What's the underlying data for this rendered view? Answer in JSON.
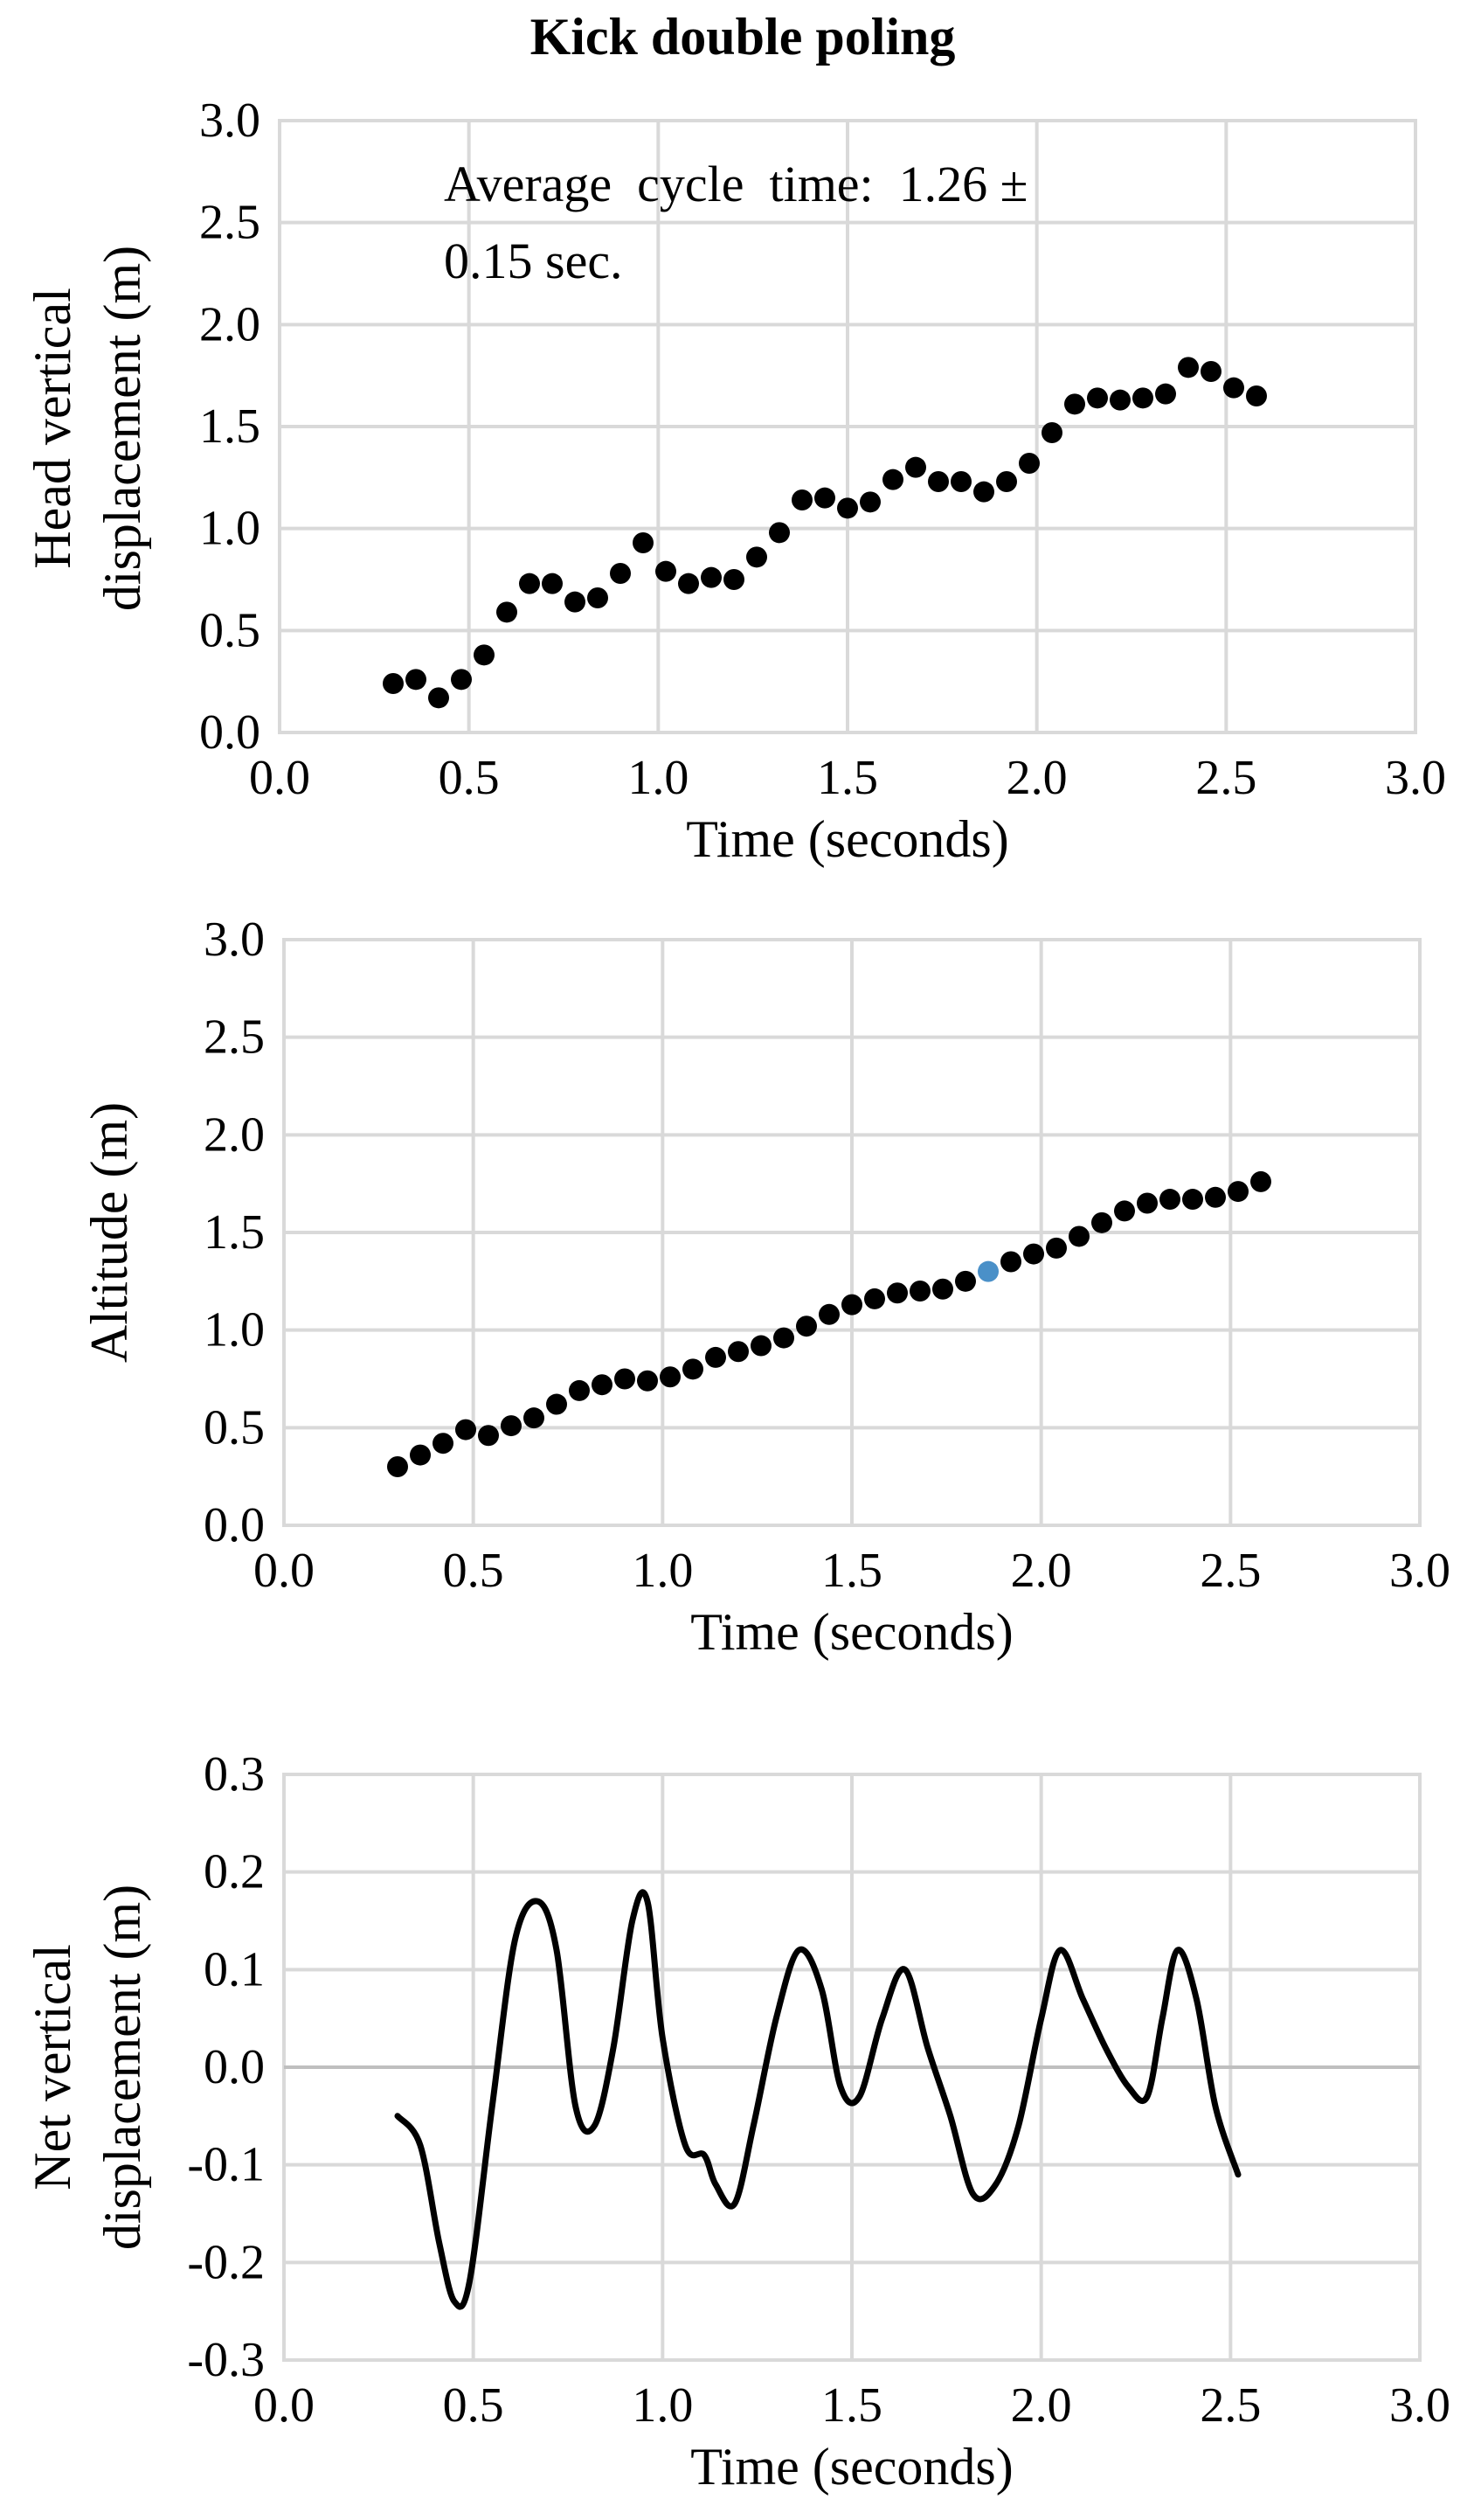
{
  "figure_title": "Kick double poling",
  "chart_data": [
    {
      "type": "scatter",
      "title": "",
      "xlabel": "Time (seconds)",
      "ylabel_lines": [
        "Head vertical",
        "displacement (m)"
      ],
      "xlim": [
        0,
        3
      ],
      "ylim": [
        0,
        3
      ],
      "xticks": [
        "0.0",
        "0.5",
        "1.0",
        "1.5",
        "2.0",
        "2.5",
        "3.0"
      ],
      "yticks": [
        "0.0",
        "0.5",
        "1.0",
        "1.5",
        "2.0",
        "2.5",
        "3.0"
      ],
      "annotation_lines": [
        "Average  cycle  time:  1.26 ±",
        "0.15 sec."
      ],
      "grid": true,
      "series": [
        {
          "name": "Head vertical displacement",
          "x": [
            0.3,
            0.36,
            0.42,
            0.48,
            0.54,
            0.6,
            0.66,
            0.72,
            0.78,
            0.84,
            0.9,
            0.96,
            1.02,
            1.08,
            1.14,
            1.2,
            1.26,
            1.32,
            1.38,
            1.44,
            1.5,
            1.56,
            1.62,
            1.68,
            1.74,
            1.8,
            1.86,
            1.92,
            1.98,
            2.04,
            2.1,
            2.16,
            2.22,
            2.28,
            2.34,
            2.4,
            2.46,
            2.52,
            2.58
          ],
          "y": [
            0.24,
            0.26,
            0.17,
            0.26,
            0.38,
            0.59,
            0.73,
            0.73,
            0.64,
            0.66,
            0.78,
            0.93,
            0.79,
            0.73,
            0.76,
            0.75,
            0.86,
            0.98,
            1.14,
            1.15,
            1.1,
            1.13,
            1.24,
            1.3,
            1.23,
            1.23,
            1.18,
            1.23,
            1.32,
            1.47,
            1.61,
            1.64,
            1.63,
            1.64,
            1.66,
            1.79,
            1.77,
            1.69,
            1.65
          ]
        }
      ]
    },
    {
      "type": "scatter",
      "title": "",
      "xlabel": "Time (seconds)",
      "ylabel_lines": [
        "Altitude (m)"
      ],
      "xlim": [
        0,
        3
      ],
      "ylim": [
        0,
        3
      ],
      "xticks": [
        "0.0",
        "0.5",
        "1.0",
        "1.5",
        "2.0",
        "2.5",
        "3.0"
      ],
      "yticks": [
        "0.0",
        "0.5",
        "1.0",
        "1.5",
        "2.0",
        "2.5",
        "3.0"
      ],
      "grid": true,
      "highlight_color": "#4a90c8",
      "series": [
        {
          "name": "Altitude",
          "x": [
            0.3,
            0.36,
            0.42,
            0.48,
            0.54,
            0.6,
            0.66,
            0.72,
            0.78,
            0.84,
            0.9,
            0.96,
            1.02,
            1.08,
            1.14,
            1.2,
            1.26,
            1.32,
            1.38,
            1.44,
            1.5,
            1.56,
            1.62,
            1.68,
            1.74,
            1.8,
            1.86,
            1.92,
            1.98,
            2.04,
            2.1,
            2.16,
            2.22,
            2.28,
            2.34,
            2.4,
            2.46,
            2.52,
            2.58
          ],
          "y": [
            0.3,
            0.36,
            0.42,
            0.49,
            0.46,
            0.51,
            0.55,
            0.62,
            0.69,
            0.72,
            0.75,
            0.74,
            0.76,
            0.8,
            0.86,
            0.89,
            0.92,
            0.96,
            1.02,
            1.08,
            1.13,
            1.16,
            1.19,
            1.2,
            1.21,
            1.25,
            1.3,
            1.35,
            1.39,
            1.42,
            1.48,
            1.55,
            1.61,
            1.65,
            1.67,
            1.67,
            1.68,
            1.71,
            1.76
          ],
          "highlight_index": 26
        }
      ]
    },
    {
      "type": "line",
      "title": "",
      "xlabel": "Time (seconds)",
      "ylabel_lines": [
        "Net vertical",
        "displacement (m)"
      ],
      "xlim": [
        0,
        3
      ],
      "ylim": [
        -0.3,
        0.3
      ],
      "xticks": [
        "0.0",
        "0.5",
        "1.0",
        "1.5",
        "2.0",
        "2.5",
        "3.0"
      ],
      "yticks": [
        "0.3",
        "0.2",
        "0.1",
        "0.0",
        "-0.1",
        "-0.2",
        "-0.3"
      ],
      "grid": true,
      "series": [
        {
          "name": "Net vertical displacement",
          "x": [
            0.3,
            0.36,
            0.41,
            0.45,
            0.49,
            0.55,
            0.61,
            0.67,
            0.72,
            0.77,
            0.82,
            0.87,
            0.92,
            0.96,
            1.0,
            1.06,
            1.11,
            1.14,
            1.19,
            1.24,
            1.3,
            1.36,
            1.42,
            1.47,
            1.52,
            1.58,
            1.64,
            1.7,
            1.76,
            1.82,
            1.88,
            1.94,
            2.0,
            2.05,
            2.11,
            2.17,
            2.23,
            2.28,
            2.32,
            2.36,
            2.41,
            2.46,
            2.52
          ],
          "y": [
            -0.05,
            -0.08,
            -0.18,
            -0.24,
            -0.22,
            -0.04,
            0.13,
            0.17,
            0.12,
            -0.04,
            -0.06,
            0.02,
            0.15,
            0.17,
            0.03,
            -0.08,
            -0.09,
            -0.12,
            -0.14,
            -0.06,
            0.05,
            0.12,
            0.08,
            -0.02,
            -0.03,
            0.05,
            0.1,
            0.02,
            -0.05,
            -0.13,
            -0.12,
            -0.06,
            0.05,
            0.12,
            0.07,
            0.02,
            -0.02,
            -0.03,
            0.05,
            0.12,
            0.07,
            -0.04,
            -0.11
          ]
        }
      ]
    }
  ]
}
